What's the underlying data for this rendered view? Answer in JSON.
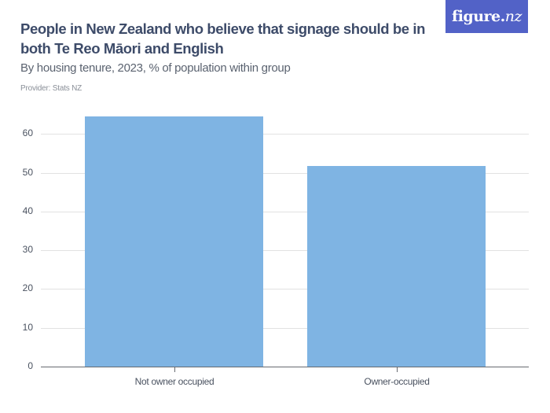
{
  "header": {
    "title": "People in New Zealand who believe that signage should be in both Te Reo Māori and English",
    "subtitle": "By housing tenure, 2023, % of population within group",
    "provider": "Provider: Stats NZ"
  },
  "logo": {
    "text_main": "figure.",
    "text_nz": "nz",
    "bg_color": "#5262c7"
  },
  "chart_data": {
    "type": "bar",
    "title": "People in New Zealand who believe that signage should be in both Te Reo Māori and English",
    "subtitle": "By housing tenure, 2023, % of population within group",
    "categories": [
      "Not owner occupied",
      "Owner-occupied"
    ],
    "values": [
      64.5,
      51.7
    ],
    "xlabel": "",
    "ylabel": "% of population within group",
    "ylim": [
      0,
      65
    ],
    "yticks": [
      0,
      10,
      20,
      30,
      40,
      50,
      60
    ],
    "grid": true,
    "legend": "none",
    "bar_color": "#7fb4e3"
  },
  "axis": {
    "y_labels": [
      "0",
      "10",
      "20",
      "30",
      "40",
      "50",
      "60"
    ],
    "x_labels": [
      "Not owner occupied",
      "Owner-occupied"
    ]
  }
}
